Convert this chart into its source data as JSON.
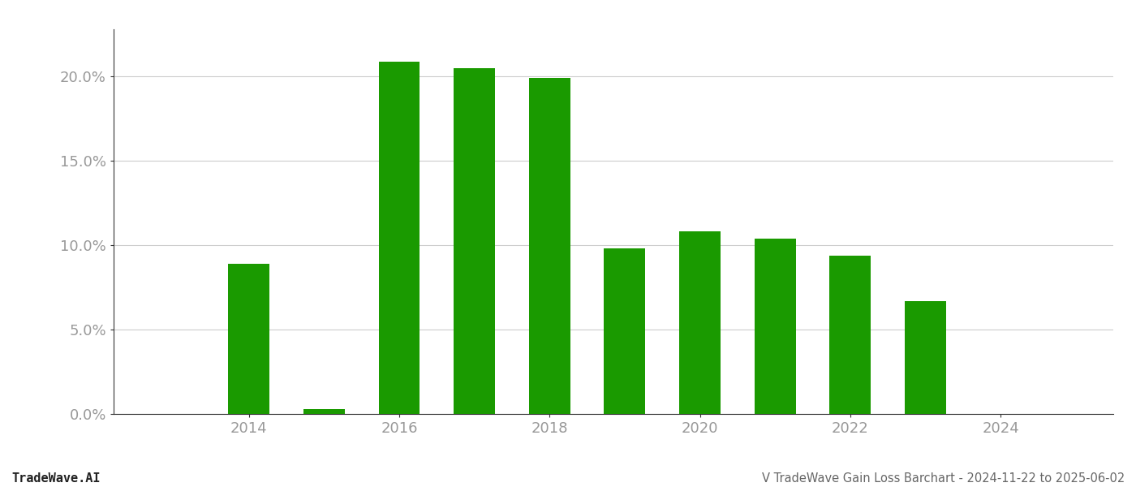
{
  "years": [
    2013,
    2014,
    2015,
    2016,
    2017,
    2018,
    2019,
    2020,
    2021,
    2022,
    2023,
    2024
  ],
  "values": [
    0.0,
    0.089,
    0.003,
    0.209,
    0.205,
    0.199,
    0.098,
    0.108,
    0.104,
    0.094,
    0.067,
    0.0
  ],
  "bar_color": "#1a9a00",
  "background_color": "#ffffff",
  "xlim": [
    2012.2,
    2025.5
  ],
  "ylim": [
    0,
    0.228
  ],
  "yticks": [
    0.0,
    0.05,
    0.1,
    0.15,
    0.2
  ],
  "xtick_labels": [
    "2014",
    "2016",
    "2018",
    "2020",
    "2022",
    "2024"
  ],
  "xtick_positions": [
    2014,
    2016,
    2018,
    2020,
    2022,
    2024
  ],
  "grid_color": "#cccccc",
  "title_text": "V TradeWave Gain Loss Barchart - 2024-11-22 to 2025-06-02",
  "watermark_text": "TradeWave.AI",
  "bar_width": 0.55,
  "title_fontsize": 10.5,
  "watermark_fontsize": 11,
  "tick_fontsize": 13,
  "tick_color": "#999999",
  "spine_color": "#333333"
}
